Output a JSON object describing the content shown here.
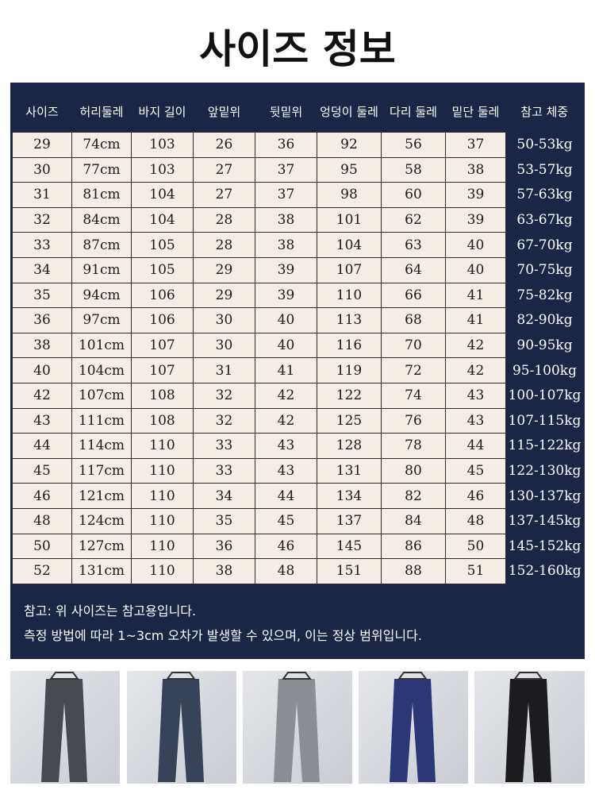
{
  "header": {
    "title": "사이즈 정보"
  },
  "table": {
    "columns": [
      "사이즈",
      "허리둘레",
      "바지 길이",
      "앞밑위",
      "뒷밑위",
      "엉덩이 둘레",
      "다리 둘레",
      "밑단 둘레",
      "참고 체중"
    ],
    "rows": [
      [
        "29",
        "74cm",
        "103",
        "26",
        "36",
        "92",
        "56",
        "37",
        "50-53kg"
      ],
      [
        "30",
        "77cm",
        "103",
        "27",
        "37",
        "95",
        "58",
        "38",
        "53-57kg"
      ],
      [
        "31",
        "81cm",
        "104",
        "27",
        "37",
        "98",
        "60",
        "39",
        "57-63kg"
      ],
      [
        "32",
        "84cm",
        "104",
        "28",
        "38",
        "101",
        "62",
        "39",
        "63-67kg"
      ],
      [
        "33",
        "87cm",
        "105",
        "28",
        "38",
        "104",
        "63",
        "40",
        "67-70kg"
      ],
      [
        "34",
        "91cm",
        "105",
        "29",
        "39",
        "107",
        "64",
        "40",
        "70-75kg"
      ],
      [
        "35",
        "94cm",
        "106",
        "29",
        "39",
        "110",
        "66",
        "41",
        "75-82kg"
      ],
      [
        "36",
        "97cm",
        "106",
        "30",
        "40",
        "113",
        "68",
        "41",
        "82-90kg"
      ],
      [
        "38",
        "101cm",
        "107",
        "30",
        "40",
        "116",
        "70",
        "42",
        "90-95kg"
      ],
      [
        "40",
        "104cm",
        "107",
        "31",
        "41",
        "119",
        "72",
        "42",
        "95-100kg"
      ],
      [
        "42",
        "107cm",
        "108",
        "32",
        "42",
        "122",
        "74",
        "43",
        "100-107kg"
      ],
      [
        "43",
        "111cm",
        "108",
        "32",
        "42",
        "125",
        "76",
        "43",
        "107-115kg"
      ],
      [
        "44",
        "114cm",
        "110",
        "33",
        "43",
        "128",
        "78",
        "44",
        "115-122kg"
      ],
      [
        "45",
        "117cm",
        "110",
        "33",
        "43",
        "131",
        "80",
        "45",
        "122-130kg"
      ],
      [
        "46",
        "121cm",
        "110",
        "34",
        "44",
        "134",
        "82",
        "46",
        "130-137kg"
      ],
      [
        "48",
        "124cm",
        "110",
        "35",
        "45",
        "137",
        "84",
        "48",
        "137-145kg"
      ],
      [
        "50",
        "127cm",
        "110",
        "36",
        "46",
        "145",
        "86",
        "50",
        "145-152kg"
      ],
      [
        "52",
        "131cm",
        "110",
        "38",
        "48",
        "151",
        "88",
        "51",
        "152-160kg"
      ]
    ]
  },
  "notes": [
    "참고: 위 사이즈는 참고용입니다.",
    "측정 방법에 따라 1~3cm 오차가 발생할 수 있으며, 이는 정상 범위입니다."
  ]
}
